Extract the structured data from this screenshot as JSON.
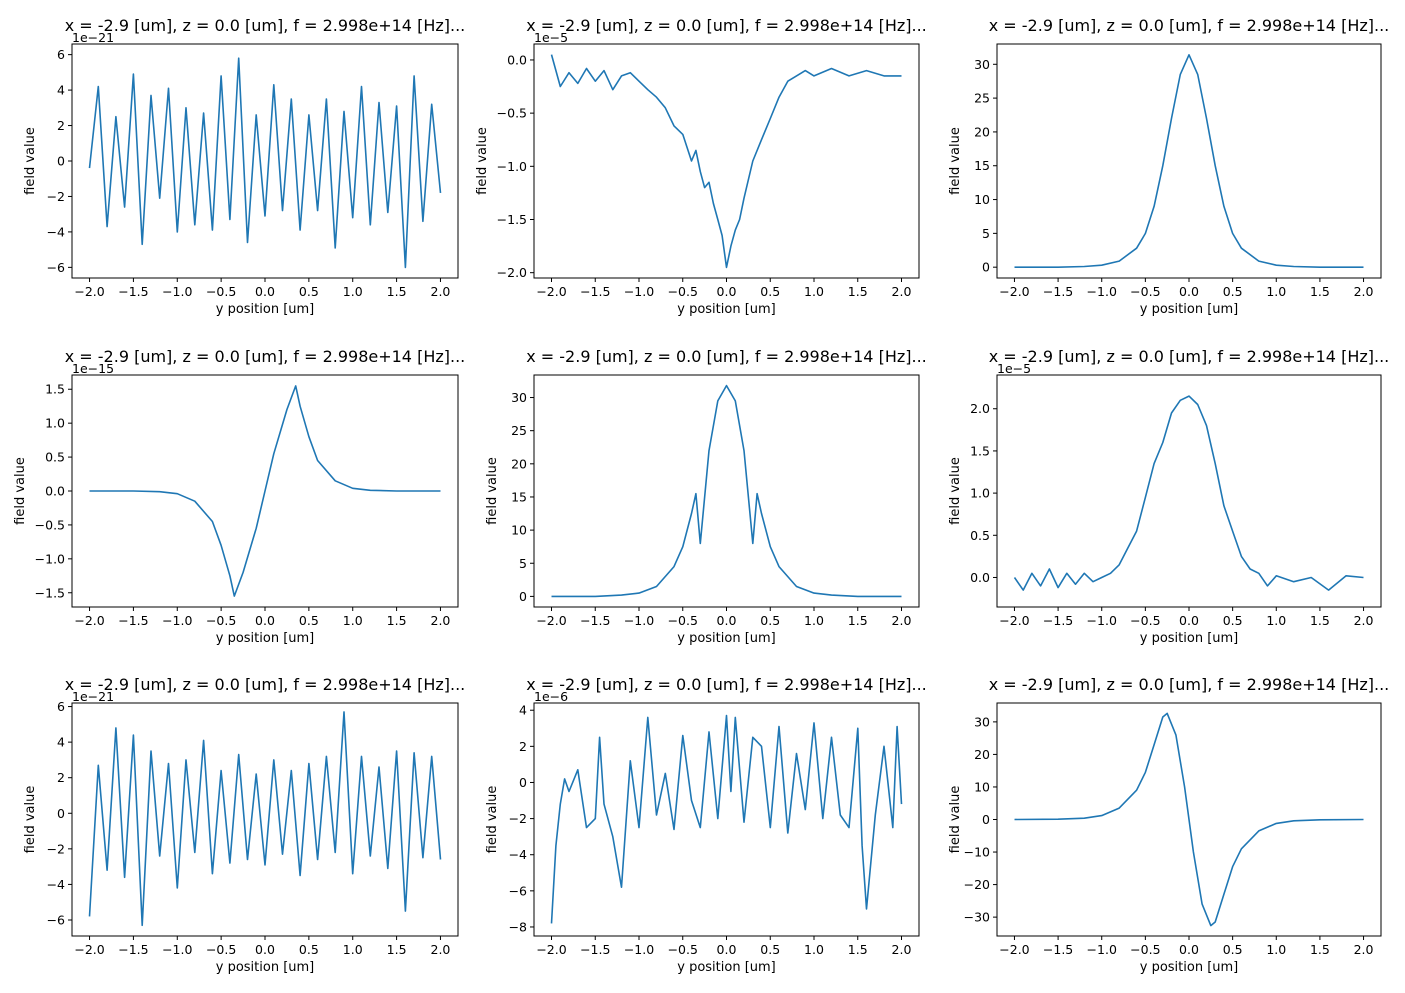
{
  "chart_data": [
    {
      "type": "line",
      "title": "x = -2.9 [um], z = 0.0 [um], f = 2.998e+14 [Hz]...",
      "xlabel": "y position [um]",
      "ylabel": "field value",
      "offset_text": "1e−21",
      "xlim": [
        -2.2,
        2.2
      ],
      "ylim": [
        -6.6,
        6.6
      ],
      "xticks": [
        -2.0,
        -1.5,
        -1.0,
        -0.5,
        0.0,
        0.5,
        1.0,
        1.5,
        2.0
      ],
      "yticks": [
        -6,
        -4,
        -2,
        0,
        2,
        4,
        6
      ],
      "xtick_labels": [
        "−2.0",
        "−1.5",
        "−1.0",
        "−0.5",
        "0.0",
        "0.5",
        "1.0",
        "1.5",
        "2.0"
      ],
      "ytick_labels": [
        "−6",
        "−4",
        "−2",
        "0",
        "2",
        "4",
        "6"
      ],
      "series": [
        {
          "x": [
            -2.0,
            -1.9,
            -1.8,
            -1.7,
            -1.6,
            -1.5,
            -1.4,
            -1.3,
            -1.2,
            -1.1,
            -1.0,
            -0.9,
            -0.8,
            -0.7,
            -0.6,
            -0.5,
            -0.4,
            -0.3,
            -0.2,
            -0.1,
            0.0,
            0.1,
            0.2,
            0.3,
            0.4,
            0.5,
            0.6,
            0.7,
            0.8,
            0.9,
            1.0,
            1.1,
            1.2,
            1.3,
            1.4,
            1.5,
            1.6,
            1.7,
            1.8,
            1.9,
            2.0
          ],
          "y": [
            -0.4,
            4.2,
            -3.7,
            2.5,
            -2.6,
            4.9,
            -4.7,
            3.7,
            -2.1,
            4.1,
            -4.0,
            3.0,
            -3.6,
            2.7,
            -3.9,
            4.8,
            -3.3,
            5.8,
            -4.6,
            2.6,
            -3.1,
            4.3,
            -2.8,
            3.5,
            -3.9,
            2.6,
            -2.8,
            3.5,
            -4.9,
            2.8,
            -3.2,
            4.2,
            -3.6,
            3.3,
            -2.9,
            3.1,
            -6.0,
            4.8,
            -3.4,
            3.2,
            -1.8
          ],
          "color": "#1f77b4"
        }
      ]
    },
    {
      "type": "line",
      "title": "x = -2.9 [um], z = 0.0 [um], f = 2.998e+14 [Hz]...",
      "xlabel": "y position [um]",
      "ylabel": "field value",
      "offset_text": "1e−5",
      "xlim": [
        -2.2,
        2.2
      ],
      "ylim": [
        -2.05,
        0.15
      ],
      "xticks": [
        -2.0,
        -1.5,
        -1.0,
        -0.5,
        0.0,
        0.5,
        1.0,
        1.5,
        2.0
      ],
      "yticks": [
        -2.0,
        -1.5,
        -1.0,
        -0.5,
        0.0
      ],
      "xtick_labels": [
        "−2.0",
        "−1.5",
        "−1.0",
        "−0.5",
        "0.0",
        "0.5",
        "1.0",
        "1.5",
        "2.0"
      ],
      "ytick_labels": [
        "−2.0",
        "−1.5",
        "−1.0",
        "−0.5",
        "0.0"
      ],
      "series": [
        {
          "x": [
            -2.0,
            -1.9,
            -1.8,
            -1.7,
            -1.6,
            -1.5,
            -1.4,
            -1.3,
            -1.2,
            -1.1,
            -1.0,
            -0.9,
            -0.8,
            -0.7,
            -0.6,
            -0.5,
            -0.4,
            -0.35,
            -0.3,
            -0.25,
            -0.2,
            -0.15,
            -0.1,
            -0.05,
            0.0,
            0.05,
            0.1,
            0.15,
            0.2,
            0.3,
            0.4,
            0.5,
            0.6,
            0.7,
            0.8,
            0.9,
            1.0,
            1.2,
            1.4,
            1.6,
            1.8,
            2.0
          ],
          "y": [
            0.05,
            -0.25,
            -0.12,
            -0.22,
            -0.08,
            -0.2,
            -0.1,
            -0.28,
            -0.15,
            -0.12,
            -0.2,
            -0.28,
            -0.35,
            -0.45,
            -0.62,
            -0.7,
            -0.95,
            -0.85,
            -1.05,
            -1.2,
            -1.15,
            -1.35,
            -1.5,
            -1.65,
            -1.95,
            -1.75,
            -1.6,
            -1.5,
            -1.3,
            -0.95,
            -0.75,
            -0.55,
            -0.35,
            -0.2,
            -0.15,
            -0.1,
            -0.15,
            -0.08,
            -0.15,
            -0.1,
            -0.15,
            -0.15
          ],
          "color": "#1f77b4"
        }
      ]
    },
    {
      "type": "line",
      "title": "x = -2.9 [um], z = 0.0 [um], f = 2.998e+14 [Hz]...",
      "xlabel": "y position [um]",
      "ylabel": "field value",
      "offset_text": "",
      "xlim": [
        -2.2,
        2.2
      ],
      "ylim": [
        -1.6,
        33.0
      ],
      "xticks": [
        -2.0,
        -1.5,
        -1.0,
        -0.5,
        0.0,
        0.5,
        1.0,
        1.5,
        2.0
      ],
      "yticks": [
        0,
        5,
        10,
        15,
        20,
        25,
        30
      ],
      "xtick_labels": [
        "−2.0",
        "−1.5",
        "−1.0",
        "−0.5",
        "0.0",
        "0.5",
        "1.0",
        "1.5",
        "2.0"
      ],
      "ytick_labels": [
        "0",
        "5",
        "10",
        "15",
        "20",
        "25",
        "30"
      ],
      "series": [
        {
          "x": [
            -2.0,
            -1.5,
            -1.2,
            -1.0,
            -0.8,
            -0.6,
            -0.5,
            -0.4,
            -0.3,
            -0.2,
            -0.1,
            0.0,
            0.1,
            0.2,
            0.3,
            0.4,
            0.5,
            0.6,
            0.8,
            1.0,
            1.2,
            1.5,
            2.0
          ],
          "y": [
            0.0,
            0.0,
            0.1,
            0.3,
            0.9,
            2.8,
            5.0,
            9.0,
            15.0,
            22.0,
            28.5,
            31.4,
            28.5,
            22.0,
            15.0,
            9.0,
            5.0,
            2.8,
            0.9,
            0.3,
            0.1,
            0.0,
            0.0
          ],
          "color": "#1f77b4"
        }
      ]
    },
    {
      "type": "line",
      "title": "x = -2.9 [um], z = 0.0 [um], f = 2.998e+14 [Hz]...",
      "xlabel": "y position [um]",
      "ylabel": "field value",
      "offset_text": "1e−15",
      "xlim": [
        -2.2,
        2.2
      ],
      "ylim": [
        -1.71,
        1.71
      ],
      "xticks": [
        -2.0,
        -1.5,
        -1.0,
        -0.5,
        0.0,
        0.5,
        1.0,
        1.5,
        2.0
      ],
      "yticks": [
        -1.5,
        -1.0,
        -0.5,
        0.0,
        0.5,
        1.0,
        1.5
      ],
      "xtick_labels": [
        "−2.0",
        "−1.5",
        "−1.0",
        "−0.5",
        "0.0",
        "0.5",
        "1.0",
        "1.5",
        "2.0"
      ],
      "ytick_labels": [
        "−1.5",
        "−1.0",
        "−0.5",
        "0.0",
        "0.5",
        "1.0",
        "1.5"
      ],
      "series": [
        {
          "x": [
            -2.0,
            -1.5,
            -1.2,
            -1.0,
            -0.8,
            -0.6,
            -0.5,
            -0.4,
            -0.35,
            -0.25,
            -0.1,
            0.0,
            0.1,
            0.25,
            0.35,
            0.4,
            0.5,
            0.6,
            0.8,
            1.0,
            1.2,
            1.5,
            2.0
          ],
          "y": [
            0.0,
            0.0,
            -0.01,
            -0.04,
            -0.15,
            -0.45,
            -0.8,
            -1.25,
            -1.55,
            -1.2,
            -0.55,
            0.0,
            0.55,
            1.2,
            1.55,
            1.25,
            0.8,
            0.45,
            0.15,
            0.04,
            0.01,
            0.0,
            0.0
          ],
          "color": "#1f77b4"
        }
      ]
    },
    {
      "type": "line",
      "title": "x = -2.9 [um], z = 0.0 [um], f = 2.998e+14 [Hz]...",
      "xlabel": "y position [um]",
      "ylabel": "field value",
      "offset_text": "",
      "xlim": [
        -2.2,
        2.2
      ],
      "ylim": [
        -1.6,
        33.4
      ],
      "xticks": [
        -2.0,
        -1.5,
        -1.0,
        -0.5,
        0.0,
        0.5,
        1.0,
        1.5,
        2.0
      ],
      "yticks": [
        0,
        5,
        10,
        15,
        20,
        25,
        30
      ],
      "xtick_labels": [
        "−2.0",
        "−1.5",
        "−1.0",
        "−0.5",
        "0.0",
        "0.5",
        "1.0",
        "1.5",
        "2.0"
      ],
      "ytick_labels": [
        "0",
        "5",
        "10",
        "15",
        "20",
        "25",
        "30"
      ],
      "series": [
        {
          "x": [
            -2.0,
            -1.5,
            -1.2,
            -1.0,
            -0.8,
            -0.6,
            -0.5,
            -0.4,
            -0.35,
            -0.3,
            -0.2,
            -0.1,
            0.0,
            0.1,
            0.2,
            0.3,
            0.35,
            0.4,
            0.5,
            0.6,
            0.8,
            1.0,
            1.2,
            1.5,
            2.0
          ],
          "y": [
            0.0,
            0.0,
            0.2,
            0.5,
            1.5,
            4.5,
            7.5,
            12.5,
            15.5,
            8.0,
            22.0,
            29.5,
            31.8,
            29.5,
            22.0,
            8.0,
            15.5,
            12.5,
            7.5,
            4.5,
            1.5,
            0.5,
            0.2,
            0.0,
            0.0
          ],
          "color": "#1f77b4"
        }
      ]
    },
    {
      "type": "line",
      "title": "x = -2.9 [um], z = 0.0 [um], f = 2.998e+14 [Hz]...",
      "xlabel": "y position [um]",
      "ylabel": "field value",
      "offset_text": "1e−5",
      "xlim": [
        -2.2,
        2.2
      ],
      "ylim": [
        -0.35,
        2.4
      ],
      "xticks": [
        -2.0,
        -1.5,
        -1.0,
        -0.5,
        0.0,
        0.5,
        1.0,
        1.5,
        2.0
      ],
      "yticks": [
        0.0,
        0.5,
        1.0,
        1.5,
        2.0
      ],
      "xtick_labels": [
        "−2.0",
        "−1.5",
        "−1.0",
        "−0.5",
        "0.0",
        "0.5",
        "1.0",
        "1.5",
        "2.0"
      ],
      "ytick_labels": [
        "0.0",
        "0.5",
        "1.0",
        "1.5",
        "2.0"
      ],
      "series": [
        {
          "x": [
            -2.0,
            -1.9,
            -1.8,
            -1.7,
            -1.6,
            -1.5,
            -1.4,
            -1.3,
            -1.2,
            -1.1,
            -1.0,
            -0.9,
            -0.8,
            -0.7,
            -0.6,
            -0.5,
            -0.4,
            -0.3,
            -0.2,
            -0.1,
            0.0,
            0.1,
            0.2,
            0.3,
            0.4,
            0.5,
            0.6,
            0.7,
            0.8,
            0.9,
            1.0,
            1.2,
            1.4,
            1.6,
            1.8,
            2.0
          ],
          "y": [
            0.0,
            -0.15,
            0.05,
            -0.1,
            0.1,
            -0.12,
            0.05,
            -0.08,
            0.05,
            -0.05,
            0.0,
            0.05,
            0.15,
            0.35,
            0.55,
            0.95,
            1.35,
            1.6,
            1.95,
            2.1,
            2.15,
            2.05,
            1.8,
            1.35,
            0.85,
            0.55,
            0.25,
            0.1,
            0.05,
            -0.1,
            0.02,
            -0.05,
            0.0,
            -0.15,
            0.02,
            0.0
          ],
          "color": "#1f77b4"
        }
      ]
    },
    {
      "type": "line",
      "title": "x = -2.9 [um], z = 0.0 [um], f = 2.998e+14 [Hz]...",
      "xlabel": "y position [um]",
      "ylabel": "field value",
      "offset_text": "1e−21",
      "xlim": [
        -2.2,
        2.2
      ],
      "ylim": [
        -6.9,
        6.2
      ],
      "xticks": [
        -2.0,
        -1.5,
        -1.0,
        -0.5,
        0.0,
        0.5,
        1.0,
        1.5,
        2.0
      ],
      "yticks": [
        -6,
        -4,
        -2,
        0,
        2,
        4,
        6
      ],
      "xtick_labels": [
        "−2.0",
        "−1.5",
        "−1.0",
        "−0.5",
        "0.0",
        "0.5",
        "1.0",
        "1.5",
        "2.0"
      ],
      "ytick_labels": [
        "−6",
        "−4",
        "−2",
        "0",
        "2",
        "4",
        "6"
      ],
      "series": [
        {
          "x": [
            -2.0,
            -1.9,
            -1.8,
            -1.7,
            -1.6,
            -1.5,
            -1.4,
            -1.3,
            -1.2,
            -1.1,
            -1.0,
            -0.9,
            -0.8,
            -0.7,
            -0.6,
            -0.5,
            -0.4,
            -0.3,
            -0.2,
            -0.1,
            0.0,
            0.1,
            0.2,
            0.3,
            0.4,
            0.5,
            0.6,
            0.7,
            0.8,
            0.9,
            1.0,
            1.1,
            1.2,
            1.3,
            1.4,
            1.5,
            1.6,
            1.7,
            1.8,
            1.9,
            2.0
          ],
          "y": [
            -5.8,
            2.7,
            -3.2,
            4.8,
            -3.6,
            4.4,
            -6.3,
            3.5,
            -2.4,
            2.8,
            -4.2,
            3.0,
            -2.2,
            4.1,
            -3.4,
            2.4,
            -2.8,
            3.3,
            -2.6,
            2.2,
            -2.9,
            3.0,
            -2.3,
            2.4,
            -3.5,
            2.8,
            -2.6,
            3.2,
            -2.2,
            5.7,
            -3.4,
            3.2,
            -2.4,
            2.6,
            -3.1,
            3.5,
            -5.5,
            3.4,
            -2.5,
            3.2,
            -2.6
          ],
          "color": "#1f77b4"
        }
      ]
    },
    {
      "type": "line",
      "title": "x = -2.9 [um], z = 0.0 [um], f = 2.998e+14 [Hz]...",
      "xlabel": "y position [um]",
      "ylabel": "field value",
      "offset_text": "1e−6",
      "xlim": [
        -2.2,
        2.2
      ],
      "ylim": [
        -8.5,
        4.4
      ],
      "xticks": [
        -2.0,
        -1.5,
        -1.0,
        -0.5,
        0.0,
        0.5,
        1.0,
        1.5,
        2.0
      ],
      "yticks": [
        -8,
        -6,
        -4,
        -2,
        0,
        2,
        4
      ],
      "xtick_labels": [
        "−2.0",
        "−1.5",
        "−1.0",
        "−0.5",
        "0.0",
        "0.5",
        "1.0",
        "1.5",
        "2.0"
      ],
      "ytick_labels": [
        "−8",
        "−6",
        "−4",
        "−2",
        "0",
        "2",
        "4"
      ],
      "series": [
        {
          "x": [
            -2.0,
            -1.95,
            -1.9,
            -1.85,
            -1.8,
            -1.7,
            -1.6,
            -1.5,
            -1.45,
            -1.4,
            -1.3,
            -1.2,
            -1.1,
            -1.0,
            -0.9,
            -0.8,
            -0.7,
            -0.6,
            -0.5,
            -0.4,
            -0.3,
            -0.2,
            -0.1,
            0.0,
            0.05,
            0.1,
            0.2,
            0.3,
            0.4,
            0.5,
            0.6,
            0.7,
            0.8,
            0.9,
            1.0,
            1.1,
            1.2,
            1.3,
            1.4,
            1.5,
            1.55,
            1.6,
            1.7,
            1.8,
            1.9,
            1.95,
            2.0
          ],
          "y": [
            -7.8,
            -3.5,
            -1.2,
            0.2,
            -0.5,
            0.7,
            -2.5,
            -2.0,
            2.5,
            -1.2,
            -3.0,
            -5.8,
            1.2,
            -2.5,
            3.6,
            -1.8,
            0.5,
            -2.6,
            2.6,
            -1.0,
            -2.5,
            2.8,
            -2.0,
            3.7,
            -0.5,
            3.6,
            -2.2,
            2.5,
            2.0,
            -2.5,
            3.1,
            -2.8,
            1.6,
            -1.5,
            3.3,
            -2.0,
            2.5,
            -1.8,
            -2.5,
            3.0,
            -3.5,
            -7.0,
            -1.8,
            2.0,
            -2.5,
            3.1,
            -1.2
          ],
          "color": "#1f77b4"
        }
      ]
    },
    {
      "type": "line",
      "title": "x = -2.9 [um], z = 0.0 [um], f = 2.998e+14 [Hz]...",
      "xlabel": "y position [um]",
      "ylabel": "field value",
      "offset_text": "",
      "xlim": [
        -2.2,
        2.2
      ],
      "ylim": [
        -35.8,
        35.8
      ],
      "xticks": [
        -2.0,
        -1.5,
        -1.0,
        -0.5,
        0.0,
        0.5,
        1.0,
        1.5,
        2.0
      ],
      "yticks": [
        -30,
        -20,
        -10,
        0,
        10,
        20,
        30
      ],
      "xtick_labels": [
        "−2.0",
        "−1.5",
        "−1.0",
        "−0.5",
        "0.0",
        "0.5",
        "1.0",
        "1.5",
        "2.0"
      ],
      "ytick_labels": [
        "−30",
        "−20",
        "−10",
        "0",
        "10",
        "20",
        "30"
      ],
      "series": [
        {
          "x": [
            -2.0,
            -1.5,
            -1.2,
            -1.0,
            -0.8,
            -0.6,
            -0.5,
            -0.4,
            -0.3,
            -0.25,
            -0.15,
            -0.05,
            0.0,
            0.05,
            0.15,
            0.25,
            0.3,
            0.4,
            0.5,
            0.6,
            0.8,
            1.0,
            1.2,
            1.5,
            2.0
          ],
          "y": [
            0.0,
            0.1,
            0.4,
            1.2,
            3.5,
            9.0,
            14.5,
            23.0,
            31.5,
            32.6,
            26.0,
            10.0,
            0.0,
            -10.0,
            -26.0,
            -32.6,
            -31.5,
            -23.0,
            -14.5,
            -9.0,
            -3.5,
            -1.2,
            -0.4,
            -0.1,
            0.0
          ],
          "color": "#1f77b4"
        }
      ]
    }
  ]
}
